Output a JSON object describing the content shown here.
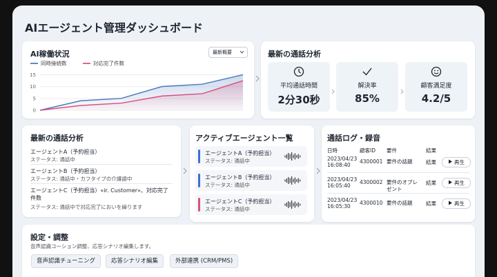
{
  "header": {
    "title": "AIエージェント管理ダッシュボード"
  },
  "chart_data": {
    "type": "line",
    "title": "AI稼働状況",
    "dropdown": "最新概要",
    "series": [
      {
        "name": "同時接続数",
        "color": "#4a78c0",
        "values": [
          0,
          4,
          5,
          10,
          11,
          15
        ]
      },
      {
        "name": "対応完了件数",
        "color": "#d9507a",
        "values": [
          0,
          2,
          3,
          6,
          7,
          12.5
        ]
      }
    ],
    "ylim": [
      0,
      16
    ],
    "yticks": [
      0,
      5,
      10,
      15
    ],
    "grid": true
  },
  "summary": {
    "title": "最新の通話分析",
    "metrics": [
      {
        "label": "平均通話時間",
        "value": "2分30秒"
      },
      {
        "label": "解決率",
        "value": "85%"
      },
      {
        "label": "顧客満足度",
        "value": "4.2/5"
      }
    ]
  },
  "call_analysis": {
    "title": "最新の通話分析",
    "items": [
      {
        "name": "エージェントA（予約担当）",
        "status": "ステータス: 通話中"
      },
      {
        "name": "エージェントB（予約担当）",
        "status": "ステータス: 通話中・カフタイプの介護語中"
      },
      {
        "name": "エージェントC（予約担当）«ir. Customer»、対応完了件数",
        "status": "ステータス: 通話中で対応完了においを繰ります"
      }
    ]
  },
  "agents": {
    "title": "アクティブエージェント一覧",
    "items": [
      {
        "name": "エージェントA（予約担当）",
        "status": "ステータス: 通話中",
        "color": "#3d6fd0"
      },
      {
        "name": "エージェントB（予約担当）",
        "status": "ステータス: 通話中",
        "color": "#3d6fd0"
      },
      {
        "name": "エージェントC（予約担当）",
        "status": "ステータス: 通話中",
        "color": "#d9507a"
      }
    ]
  },
  "call_log": {
    "title": "通話ログ・録音",
    "columns": [
      "日時",
      "顧客ID",
      "要件",
      "結果"
    ],
    "rows": [
      {
        "date": "2023/04/23",
        "time": "16:08:40",
        "id": "4300001",
        "topic": "要件の話題",
        "result": "結果"
      },
      {
        "date": "2023/04/23",
        "time": "16:05:40",
        "id": "4300002",
        "topic": "要件のオプレゼント",
        "result": "結果"
      },
      {
        "date": "2023/04/23",
        "time": "16:05:30",
        "id": "4300010",
        "topic": "要件の話題",
        "result": "結果"
      }
    ],
    "play": "再生"
  },
  "settings": {
    "title": "設定・調整",
    "description": "音声認識コーション調整、応答シナリオ編集します。",
    "buttons": [
      "音声認識チューニング",
      "応答シナリオ編集",
      "外部連携 (CRM/PMS)"
    ]
  }
}
